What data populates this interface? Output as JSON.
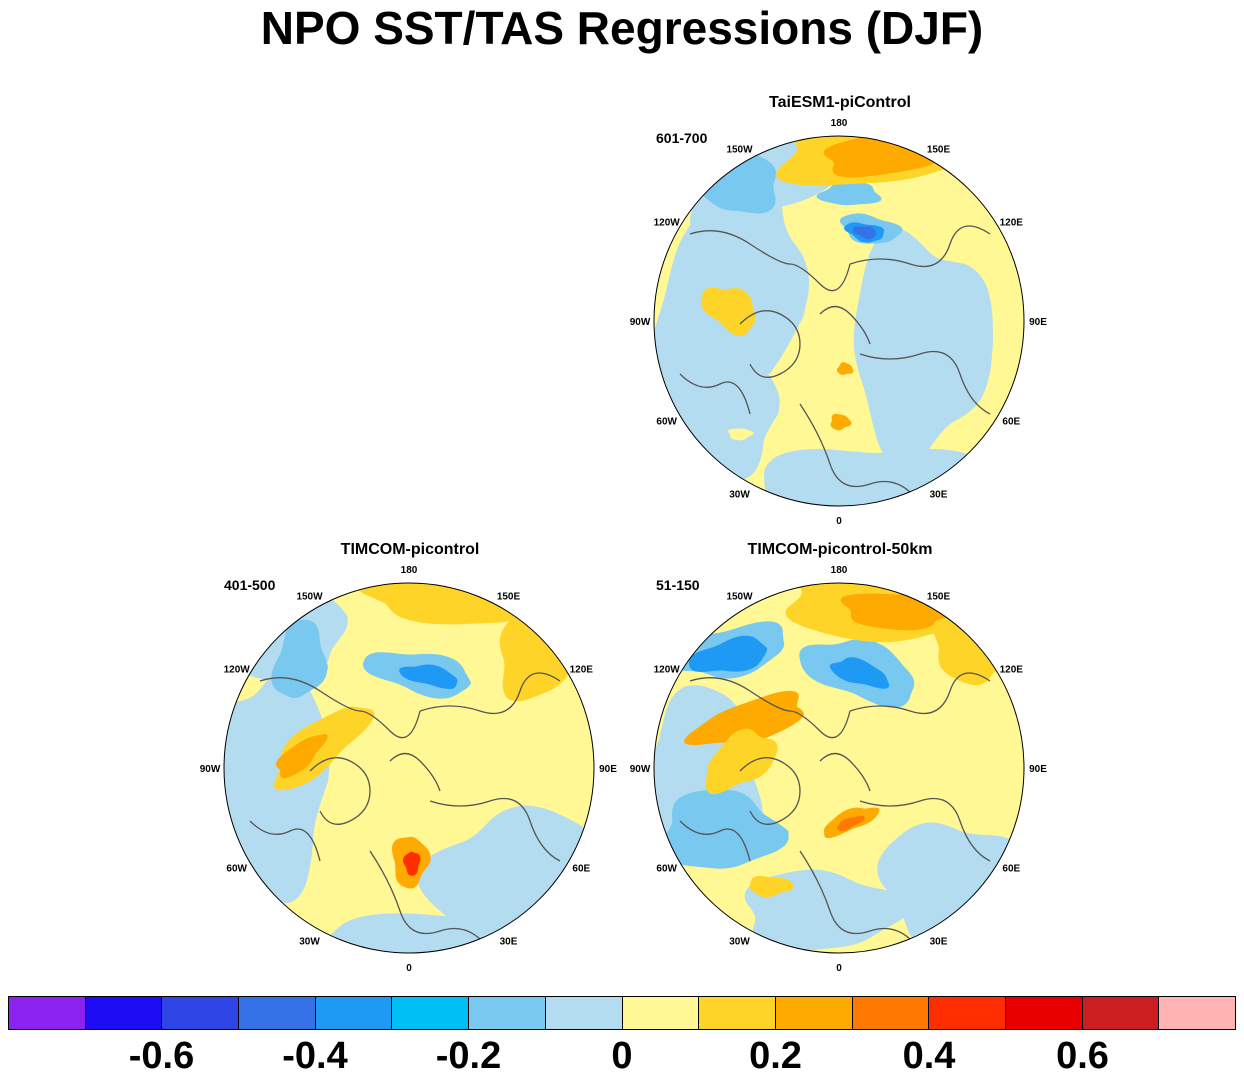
{
  "title": "NPO SST/TAS Regressions (DJF)",
  "panels": [
    {
      "title": "TaiESM1-piControl",
      "period": "601-700",
      "variant": 0
    },
    {
      "title": "TIMCOM-picontrol",
      "period": "401-500",
      "variant": 1
    },
    {
      "title": "TIMCOM-picontrol-50km",
      "period": "51-150",
      "variant": 2
    }
  ],
  "lon_labels": [
    "180",
    "150E",
    "120E",
    "90E",
    "60E",
    "30E",
    "0",
    "30W",
    "60W",
    "90W",
    "120W",
    "150W"
  ],
  "colorbar": {
    "colors": [
      "#8b22f0",
      "#1e0cf5",
      "#2f45e6",
      "#3572e8",
      "#1e9af5",
      "#00bff5",
      "#78c8f0",
      "#b4dcf0",
      "#fff894",
      "#ffd428",
      "#ffaa00",
      "#ff7800",
      "#ff2e00",
      "#e80000",
      "#cc1e1e",
      "#ffb4b4"
    ],
    "labels": [
      "-0.6",
      "-0.4",
      "-0.2",
      "0",
      "0.2",
      "0.4",
      "0.6"
    ]
  }
}
